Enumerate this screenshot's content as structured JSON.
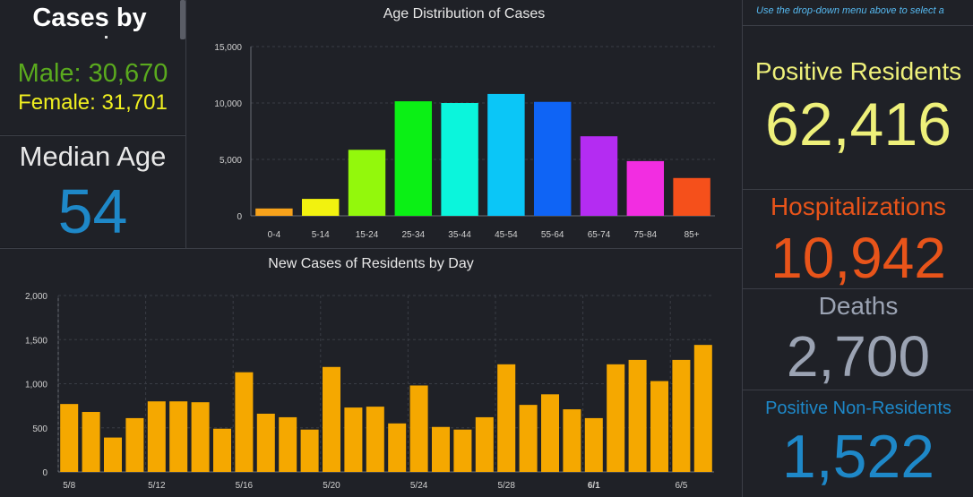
{
  "left_panel": {
    "title": "Cases by",
    "male": "Male: 30,670",
    "female": "Female: 31,701",
    "median_label": "Median Age",
    "median_value": "54"
  },
  "age_chart": {
    "title": "Age Distribution of Cases"
  },
  "daily_chart": {
    "title": "New Cases of Residents by Day"
  },
  "right_panel": {
    "note": "Use the drop-down menu above to select a",
    "positive_residents_label": "Positive Residents",
    "positive_residents_value": "62,416",
    "hospitalizations_label": "Hospitalizations",
    "hospitalizations_value": "10,942",
    "deaths_label": "Deaths",
    "deaths_value": "2,700",
    "non_residents_label": "Positive Non-Residents",
    "non_residents_value": "1,522"
  },
  "colors": {
    "male": "#5aaa1e",
    "female": "#f0f020",
    "median": "#1e88c8",
    "positive_residents": "#eef07a",
    "hospitalizations": "#e8541a",
    "deaths": "#9ba3b3",
    "non_residents": "#1e88c8",
    "daily_bar": "#f5a800"
  },
  "chart_data": [
    {
      "type": "bar",
      "title": "Age Distribution of Cases",
      "categories": [
        "0-4",
        "5-14",
        "15-24",
        "25-34",
        "35-44",
        "45-54",
        "55-64",
        "65-74",
        "75-84",
        "85+"
      ],
      "values": [
        650,
        1500,
        5850,
        10150,
        10000,
        10800,
        10100,
        7050,
        4850,
        3350
      ],
      "colors": [
        "#f7a21b",
        "#f2f20f",
        "#93f80c",
        "#0bf015",
        "#0bf5dc",
        "#0bc6f7",
        "#0f64f5",
        "#b42cf2",
        "#f22de1",
        "#f5501b"
      ],
      "ylim": [
        0,
        15000
      ],
      "yticks": [
        "0",
        "5,000",
        "10,000",
        "15,000"
      ],
      "ytick_values": [
        0,
        5000,
        10000,
        15000
      ],
      "grid": true
    },
    {
      "type": "bar",
      "title": "New Cases of Residents by Day",
      "x_tick_labels": [
        "5/8",
        "5/12",
        "5/16",
        "5/20",
        "5/24",
        "5/28",
        "6/1",
        "6/5"
      ],
      "values": [
        770,
        680,
        390,
        610,
        800,
        800,
        790,
        490,
        1130,
        660,
        620,
        480,
        1190,
        730,
        740,
        550,
        980,
        510,
        480,
        620,
        1220,
        760,
        880,
        710,
        610,
        1220,
        1270,
        1030,
        1270,
        1440
      ],
      "ylim": [
        0,
        2000
      ],
      "yticks": [
        "0",
        "500",
        "1,000",
        "1,500",
        "2,000"
      ],
      "ytick_values": [
        0,
        500,
        1000,
        1500,
        2000
      ],
      "grid": true
    }
  ]
}
